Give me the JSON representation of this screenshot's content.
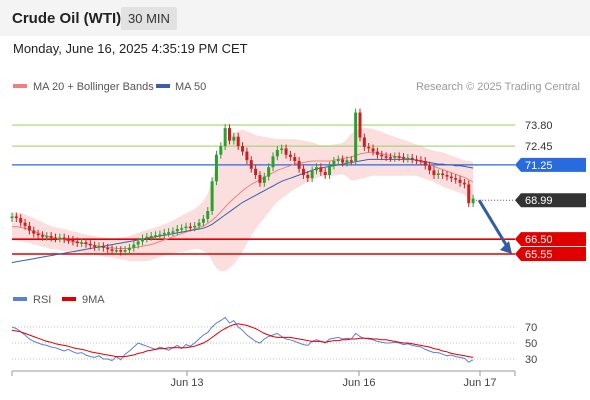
{
  "header": {
    "title": "Crude Oil (WTI)",
    "timeframe": "30 MIN",
    "datetime": "Monday, June 16, 2025 4:35:19 PM CET"
  },
  "credit": "Research © 2025 Trading Central",
  "colors": {
    "price_line": "#2a6adf",
    "last_price": "#333333",
    "support": "#e00000",
    "resistance": "#9acd63",
    "candle_up": "#2ca02c",
    "candle_down": "#cc1f1f",
    "bollinger": "#f7c4c4",
    "ma20": "#f08080",
    "ma50": "#3a5fa8",
    "rsi": "#5b7fd6",
    "rsi_ma": "#e00000",
    "arrow": "#2f5fa0"
  },
  "chart_data": [
    {
      "type": "candlestick",
      "legend": [
        {
          "label": "MA 20 + Bollinger Bands",
          "color": "#f08080"
        },
        {
          "label": "MA 50",
          "color": "#3a5fa8"
        }
      ],
      "x_ticks": [
        "Jun 13",
        "Jun 16",
        "Jun 17"
      ],
      "y_range": [
        61.0,
        77.0
      ],
      "levels": [
        {
          "label": "73.80",
          "value": 73.8,
          "kind": "resistance"
        },
        {
          "label": "72.45",
          "value": 72.45,
          "kind": "resistance"
        },
        {
          "label": "71.25",
          "value": 71.25,
          "kind": "current"
        },
        {
          "label": "68.99",
          "value": 68.99,
          "kind": "last"
        },
        {
          "label": "66.50",
          "value": 66.5,
          "kind": "support"
        },
        {
          "label": "65.55",
          "value": 65.55,
          "kind": "support"
        }
      ],
      "close": [
        67.95,
        67.85,
        67.55,
        67.35,
        67.05,
        66.85,
        66.75,
        66.65,
        66.7,
        66.6,
        66.55,
        66.6,
        66.5,
        66.45,
        66.35,
        66.25,
        66.3,
        66.2,
        66.1,
        66.0,
        66.05,
        65.95,
        65.85,
        65.75,
        65.8,
        65.7,
        65.8,
        65.95,
        66.15,
        66.35,
        66.55,
        66.65,
        66.7,
        66.75,
        66.8,
        66.9,
        66.95,
        67.0,
        67.15,
        67.2,
        67.3,
        67.25,
        67.35,
        67.55,
        67.8,
        68.3,
        70.2,
        71.9,
        72.45,
        73.6,
        72.8,
        73.05,
        72.45,
        72.1,
        71.55,
        71.0,
        70.6,
        70.1,
        70.5,
        71.1,
        71.8,
        72.2,
        72.3,
        71.9,
        71.75,
        71.5,
        71.0,
        70.6,
        70.4,
        70.9,
        71.1,
        70.8,
        70.6,
        71.2,
        71.5,
        71.6,
        71.4,
        71.55,
        71.5,
        74.6,
        73.0,
        72.4,
        72.3,
        72.1,
        71.9,
        71.8,
        71.75,
        71.7,
        71.8,
        71.75,
        71.65,
        71.7,
        71.6,
        71.55,
        71.5,
        71.2,
        70.9,
        70.6,
        70.7,
        70.6,
        70.5,
        70.4,
        70.3,
        70.1,
        70.0,
        68.8,
        69.1
      ],
      "ma20": [
        67.3,
        67.3,
        67.25,
        67.2,
        67.1,
        67.0,
        66.9,
        66.8,
        66.7,
        66.6,
        66.55,
        66.5,
        66.45,
        66.4,
        66.35,
        66.3,
        66.25,
        66.2,
        66.15,
        66.1,
        66.05,
        66.0,
        65.95,
        65.95,
        65.9,
        65.9,
        65.9,
        65.9,
        65.95,
        66.0,
        66.05,
        66.1,
        66.15,
        66.25,
        66.35,
        66.45,
        66.55,
        66.65,
        66.75,
        66.85,
        66.95,
        67.05,
        67.15,
        67.25,
        67.35,
        67.5,
        67.7,
        67.95,
        68.25,
        68.55,
        68.85,
        69.1,
        69.35,
        69.6,
        69.8,
        70.0,
        70.15,
        70.3,
        70.45,
        70.6,
        70.75,
        70.9,
        71.0,
        71.1,
        71.2,
        71.3,
        71.35,
        71.4,
        71.45,
        71.5,
        71.5,
        71.5,
        71.5,
        71.5,
        71.55,
        71.6,
        71.65,
        71.7,
        71.75,
        71.85,
        71.95,
        72.0,
        72.05,
        72.05,
        72.0,
        71.95,
        71.9,
        71.85,
        71.8,
        71.75,
        71.7,
        71.65,
        71.6,
        71.55,
        71.45,
        71.35,
        71.25,
        71.15,
        71.05,
        70.95,
        70.85,
        70.75,
        70.65,
        70.55,
        70.45,
        70.3,
        70.15
      ],
      "bb_width": [
        0.9,
        0.9,
        0.9,
        0.9,
        0.85,
        0.85,
        0.8,
        0.8,
        0.75,
        0.75,
        0.7,
        0.7,
        0.7,
        0.65,
        0.65,
        0.65,
        0.6,
        0.6,
        0.6,
        0.6,
        0.6,
        0.6,
        0.6,
        0.6,
        0.65,
        0.7,
        0.75,
        0.8,
        0.85,
        0.9,
        0.95,
        1.0,
        1.0,
        1.0,
        1.0,
        1.0,
        1.0,
        1.05,
        1.1,
        1.15,
        1.2,
        1.25,
        1.3,
        1.4,
        1.6,
        1.9,
        2.6,
        3.3,
        3.8,
        4.1,
        4.2,
        4.2,
        4.1,
        3.9,
        3.6,
        3.3,
        3.0,
        2.8,
        2.6,
        2.4,
        2.2,
        2.0,
        1.9,
        1.8,
        1.7,
        1.6,
        1.5,
        1.4,
        1.3,
        1.2,
        1.1,
        1.0,
        1.0,
        1.0,
        1.0,
        1.0,
        1.0,
        1.2,
        1.5,
        1.6,
        1.6,
        1.6,
        1.55,
        1.5,
        1.45,
        1.4,
        1.35,
        1.3,
        1.25,
        1.2,
        1.15,
        1.1,
        1.05,
        1.0,
        1.0,
        1.0,
        1.0,
        1.0,
        1.05,
        1.1,
        1.1,
        1.1,
        1.1,
        1.1,
        1.1,
        1.2,
        1.3
      ],
      "ma50": [
        65.0,
        65.05,
        65.1,
        65.15,
        65.2,
        65.25,
        65.3,
        65.35,
        65.4,
        65.45,
        65.5,
        65.55,
        65.6,
        65.65,
        65.7,
        65.75,
        65.8,
        65.85,
        65.9,
        65.95,
        66.0,
        66.05,
        66.1,
        66.15,
        66.2,
        66.25,
        66.3,
        66.35,
        66.4,
        66.45,
        66.5,
        66.55,
        66.6,
        66.65,
        66.7,
        66.75,
        66.8,
        66.85,
        66.9,
        66.95,
        67.0,
        67.05,
        67.1,
        67.15,
        67.2,
        67.3,
        67.45,
        67.65,
        67.85,
        68.05,
        68.25,
        68.45,
        68.65,
        68.85,
        69.0,
        69.15,
        69.3,
        69.45,
        69.6,
        69.75,
        69.9,
        70.05,
        70.2,
        70.3,
        70.4,
        70.5,
        70.6,
        70.7,
        70.8,
        70.9,
        71.0,
        71.05,
        71.1,
        71.15,
        71.2,
        71.25,
        71.3,
        71.35,
        71.4,
        71.45,
        71.5,
        71.55,
        71.6,
        71.6,
        71.6,
        71.6,
        71.6,
        71.6,
        71.6,
        71.6,
        71.6,
        71.6,
        71.6,
        71.55,
        71.5,
        71.45,
        71.4,
        71.35,
        71.3,
        71.3,
        71.25,
        71.25,
        71.2,
        71.2,
        71.15,
        71.1,
        71.05
      ],
      "projection": {
        "from": 68.99,
        "to": 65.55
      }
    },
    {
      "type": "line",
      "legend": [
        {
          "label": "RSI",
          "color": "#5b7fd6"
        },
        {
          "label": "9MA",
          "color": "#e00000"
        }
      ],
      "y_ticks": [
        70,
        50,
        30
      ],
      "y_range": [
        20,
        90
      ],
      "rsi": [
        70,
        68,
        64,
        60,
        55,
        52,
        50,
        48,
        47,
        45,
        44,
        42,
        40,
        42,
        39,
        37,
        38,
        35,
        33,
        32,
        34,
        30,
        30,
        28,
        33,
        29,
        36,
        40,
        45,
        50,
        48,
        46,
        44,
        42,
        45,
        43,
        41,
        44,
        47,
        43,
        48,
        46,
        50,
        55,
        60,
        63,
        70,
        75,
        78,
        82,
        75,
        78,
        70,
        66,
        60,
        56,
        52,
        50,
        55,
        58,
        60,
        62,
        58,
        55,
        54,
        52,
        50,
        48,
        47,
        52,
        54,
        52,
        50,
        55,
        56,
        57,
        55,
        56,
        55,
        62,
        58,
        56,
        55,
        54,
        52,
        51,
        50,
        50,
        51,
        50,
        48,
        49,
        47,
        46,
        45,
        42,
        40,
        38,
        38,
        36,
        34,
        35,
        33,
        32,
        31,
        26,
        29
      ],
      "ma9": [
        66,
        65,
        64,
        62,
        60,
        58,
        56,
        54,
        52,
        51,
        49,
        48,
        47,
        46,
        44,
        43,
        42,
        41,
        39,
        38,
        37,
        36,
        35,
        34,
        33,
        33,
        33,
        34,
        35,
        37,
        38,
        40,
        41,
        42,
        43,
        43,
        44,
        44,
        44,
        44,
        44,
        45,
        46,
        48,
        50,
        53,
        57,
        61,
        65,
        68,
        71,
        73,
        74,
        73,
        72,
        70,
        68,
        65,
        62,
        60,
        58,
        57,
        57,
        57,
        57,
        56,
        55,
        54,
        53,
        52,
        52,
        52,
        51,
        52,
        53,
        53,
        54,
        54,
        55,
        55,
        56,
        56,
        56,
        55,
        55,
        54,
        54,
        53,
        52,
        51,
        50,
        50,
        49,
        48,
        47,
        46,
        45,
        43,
        42,
        40,
        39,
        37,
        36,
        35,
        34,
        33,
        32
      ],
      "x_ticks": [
        "Jun 13",
        "Jun 16",
        "Jun 17"
      ]
    }
  ]
}
